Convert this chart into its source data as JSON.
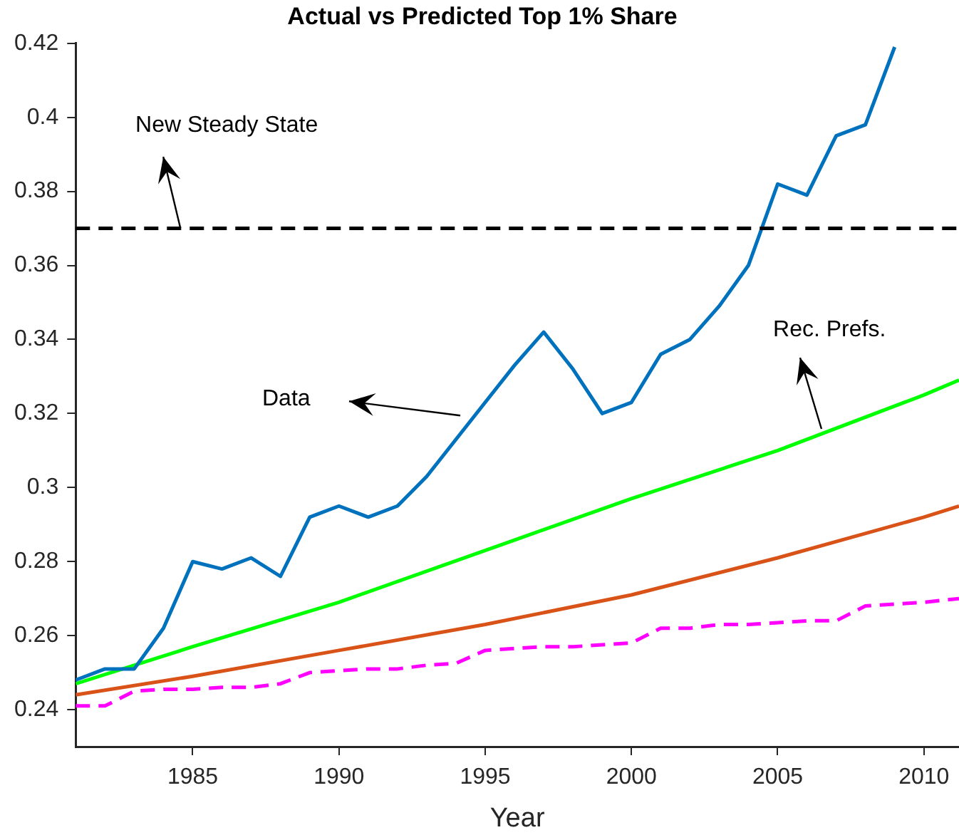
{
  "chart_data": {
    "type": "line",
    "title": "Actual vs Predicted Top 1% Share",
    "xlabel": "Year",
    "xlim": [
      1981,
      2011.2
    ],
    "xticks": [
      1985,
      1990,
      1995,
      2000,
      2005,
      2010
    ],
    "ylim": [
      0.23,
      0.42
    ],
    "yticks": [
      0.24,
      0.26,
      0.28,
      0.3,
      0.32,
      0.34,
      0.36,
      0.38,
      0.4,
      0.42
    ],
    "grid": false,
    "legend": false,
    "series": [
      {
        "color": "#0072bd",
        "x": [
          1981,
          1982,
          1983,
          1984,
          1985,
          1986,
          1987,
          1988,
          1989,
          1990,
          1991,
          1992,
          1993,
          1994,
          1995,
          1996,
          1997,
          1998,
          1999,
          2000,
          2001,
          2002,
          2003,
          2004,
          2005,
          2006,
          2007,
          2008,
          2009
        ],
        "values": [
          0.248,
          0.251,
          0.251,
          0.262,
          0.28,
          0.278,
          0.281,
          0.276,
          0.292,
          0.295,
          0.292,
          0.295,
          0.303,
          0.313,
          0.323,
          0.333,
          0.342,
          0.332,
          0.32,
          0.323,
          0.336,
          0.34,
          0.349,
          0.36,
          0.382,
          0.379,
          0.395,
          0.398,
          0.419
        ]
      },
      {
        "color": "#00ff00",
        "x": [
          1981,
          1985,
          1990,
          1995,
          2000,
          2005,
          2010,
          2011.2
        ],
        "values": [
          0.247,
          0.257,
          0.269,
          0.283,
          0.297,
          0.31,
          0.325,
          0.329
        ]
      },
      {
        "color": "#d95319",
        "x": [
          1981,
          1985,
          1990,
          1995,
          2000,
          2005,
          2010,
          2011.2
        ],
        "values": [
          0.244,
          0.249,
          0.256,
          0.263,
          0.271,
          0.281,
          0.292,
          0.295
        ]
      },
      {
        "color": "#ff00ff",
        "line_style": "dashed",
        "x": [
          1981,
          1982,
          1983,
          1984,
          1985,
          1986,
          1987,
          1988,
          1989,
          1990,
          1991,
          1992,
          1993,
          1994,
          1995,
          1996,
          1997,
          1998,
          1999,
          2000,
          2001,
          2002,
          2003,
          2004,
          2005,
          2006,
          2007,
          2008,
          2009,
          2010,
          2011.2
        ],
        "values": [
          0.241,
          0.241,
          0.245,
          0.2455,
          0.2455,
          0.246,
          0.246,
          0.247,
          0.25,
          0.2505,
          0.251,
          0.251,
          0.252,
          0.2525,
          0.256,
          0.2565,
          0.257,
          0.257,
          0.2575,
          0.258,
          0.262,
          0.262,
          0.263,
          0.263,
          0.2635,
          0.264,
          0.264,
          0.268,
          0.2685,
          0.269,
          0.27
        ]
      }
    ],
    "ref_lines": [
      {
        "axis": "y",
        "value": 0.37,
        "color": "#000000",
        "line_style": "dashed"
      }
    ],
    "annotations": [
      {
        "text": "New Steady State",
        "x": 1984.6,
        "y": 0.37
      },
      "Data",
      {
        "text": "Rec. Prefs.",
        "x": 2006.5,
        "y": 0.316
      }
    ]
  }
}
